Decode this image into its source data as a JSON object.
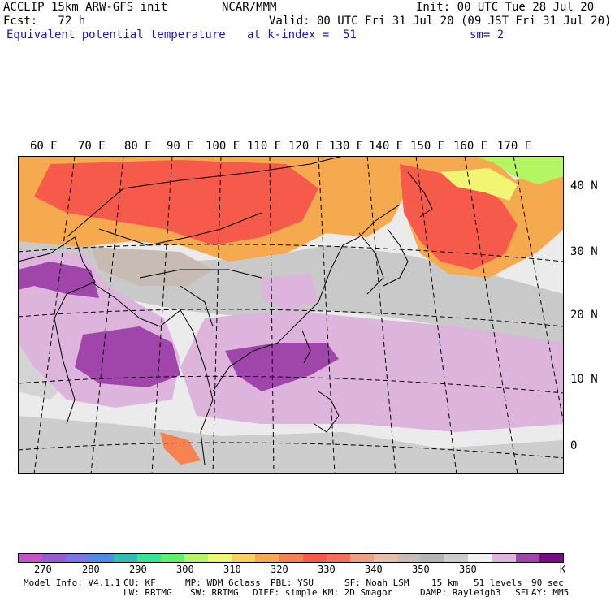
{
  "header": {
    "line1_left": "ACCLIP 15km ARW-GFS init",
    "line1_center": "NCAR/MMM",
    "line1_right": "Init: 00 UTC Tue 28 Jul 20",
    "line2_left": "Fcst:   72 h",
    "line2_right": "Valid: 00 UTC Fri 31 Jul 20 (09 JST Fri 31 Jul 20)",
    "line3_left": "Equivalent potential temperature",
    "line3_center": "at k-index =  51",
    "line3_right": "sm= 2"
  },
  "map": {
    "lon_labels": [
      "60 E",
      "70 E",
      "80 E",
      "90 E",
      "100 E",
      "110 E",
      "120 E",
      "130 E",
      "140 E",
      "150 E",
      "160 E",
      "170 E"
    ],
    "lat_labels": [
      "40 N",
      "30 N",
      "20 N",
      "10 N",
      "0"
    ],
    "field": "Equivalent potential temperature",
    "units": "K"
  },
  "colorbar": {
    "colors": [
      "#c855c8",
      "#9b5ad2",
      "#7878e1",
      "#508ce6",
      "#32beb4",
      "#32e696",
      "#5ff06e",
      "#b4f564",
      "#f0f573",
      "#f5d25f",
      "#f5aa50",
      "#f58250",
      "#f55a4b",
      "#f56e5a",
      "#f0a082",
      "#e6bea5",
      "#c8bbb4",
      "#b4b4b4",
      "#cdcdcd",
      "#f0f0f0",
      "#dcb4dc",
      "#a046aa",
      "#780a82"
    ],
    "ticks": [
      "270",
      "280",
      "290",
      "300",
      "310",
      "320",
      "330",
      "340",
      "350",
      "360"
    ],
    "unit": "K"
  },
  "footer": {
    "line1": {
      "model": "Model Info: V4.1.1",
      "cu": "CU: KF",
      "mp": "MP: WDM 6class",
      "pbl": "PBL: YSU",
      "sf": "SF: Noah LSM",
      "res": "15 km",
      "levels": "51 levels",
      "dt": "90 sec"
    },
    "line2": {
      "lw": "LW: RRTMG",
      "sw": "SW: RRTMG",
      "diff": "DIFF: simple KM: 2D Smagor",
      "damp": "DAMP: Rayleigh3",
      "sflay": "SFLAY: MM5"
    }
  }
}
